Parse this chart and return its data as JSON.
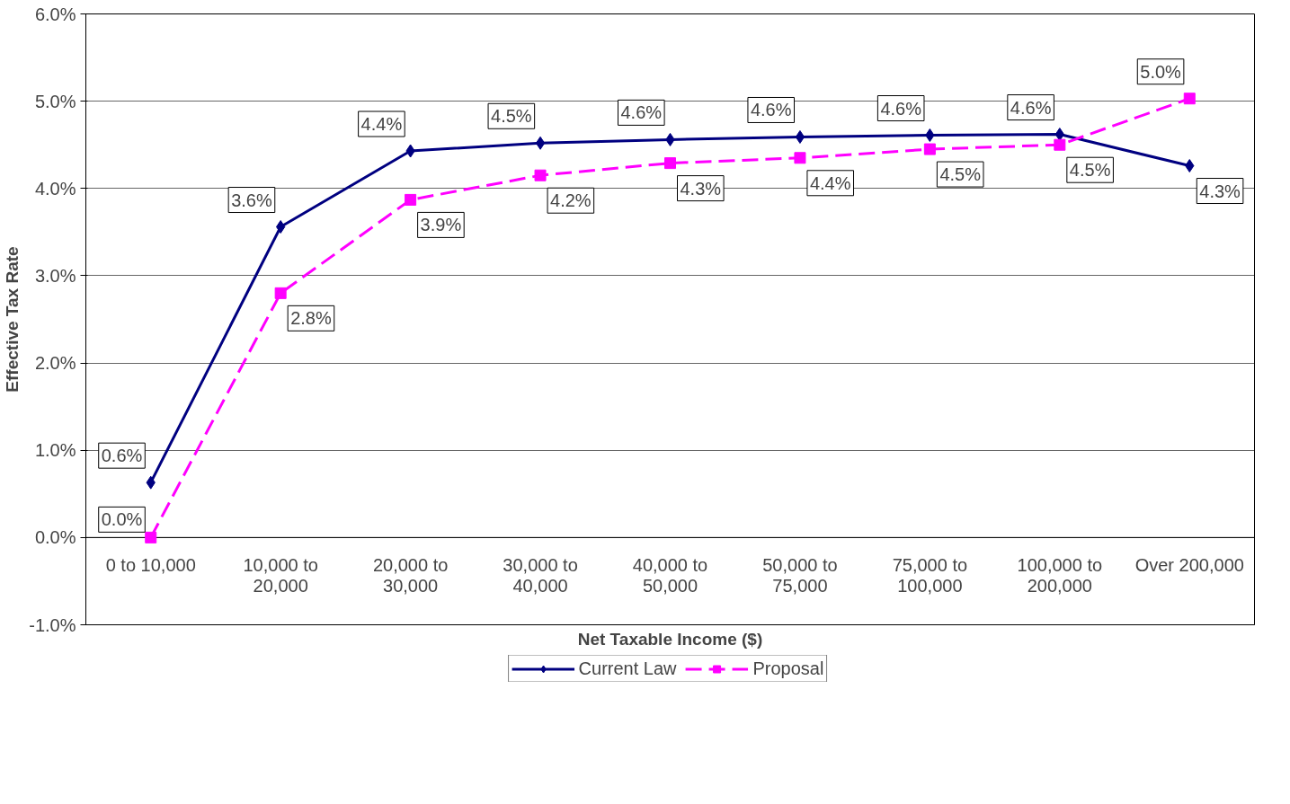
{
  "chart_data": {
    "type": "line",
    "xlabel": "Net Taxable Income ($)",
    "ylabel": "Effective Tax Rate",
    "categories": [
      "0 to 10,000",
      "10,000 to 20,000",
      "20,000 to 30,000",
      "30,000 to 40,000",
      "40,000 to 50,000",
      "50,000 to 75,000",
      "75,000 to 100,000",
      "100,000 to 200,000",
      "Over 200,000"
    ],
    "series": [
      {
        "name": "Current Law",
        "color": "#000080",
        "marker": "diamond",
        "line_style": "solid",
        "values": [
          0.63,
          3.56,
          4.43,
          4.52,
          4.56,
          4.59,
          4.61,
          4.62,
          4.26
        ],
        "value_labels": [
          "0.6%",
          "3.6%",
          "4.4%",
          "4.5%",
          "4.6%",
          "4.6%",
          "4.6%",
          "4.6%",
          "4.3%"
        ]
      },
      {
        "name": "Proposal",
        "color": "#ff00ff",
        "marker": "square",
        "line_style": "dashed",
        "values": [
          0.0,
          2.8,
          3.87,
          4.15,
          4.29,
          4.35,
          4.45,
          4.5,
          5.03
        ],
        "value_labels": [
          "0.0%",
          "2.8%",
          "3.9%",
          "4.2%",
          "4.3%",
          "4.4%",
          "4.5%",
          "4.5%",
          "5.0%"
        ]
      }
    ],
    "ylim": [
      -1,
      6
    ],
    "yticks": [
      {
        "value": -1,
        "label": "-1.0%"
      },
      {
        "value": 0,
        "label": "0.0%"
      },
      {
        "value": 1,
        "label": "1.0%"
      },
      {
        "value": 2,
        "label": "2.0%"
      },
      {
        "value": 3,
        "label": "3.0%"
      },
      {
        "value": 4,
        "label": "4.0%"
      },
      {
        "value": 5,
        "label": "5.0%"
      },
      {
        "value": 6,
        "label": "6.0%"
      }
    ],
    "grid": "y",
    "legend": "bottom"
  }
}
